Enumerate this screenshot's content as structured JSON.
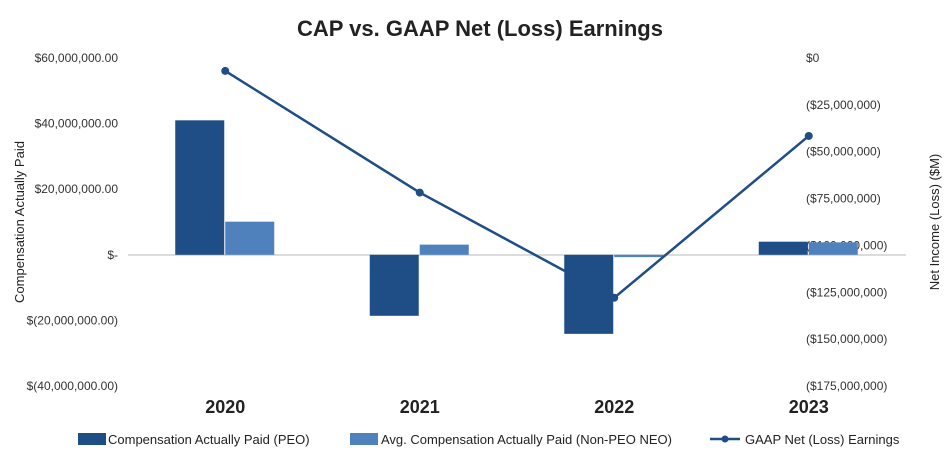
{
  "chart_data": {
    "type": "bar+line",
    "title": "CAP vs. GAAP Net (Loss) Earnings",
    "categories": [
      "2020",
      "2021",
      "2022",
      "2023"
    ],
    "ylabel": "Compensation Actually Paid",
    "y2label": "Net Income (Loss) ($M)",
    "ylim": [
      -40000000,
      60000000
    ],
    "y2lim": [
      -175000000,
      0
    ],
    "yticks": [
      "$(40,000,000.00)",
      "$(20,000,000.00)",
      "$-",
      "$20,000,000.00",
      "$40,000,000.00",
      "$60,000,000.00"
    ],
    "ytick_values": [
      -40000000,
      -20000000,
      0,
      20000000,
      40000000,
      60000000
    ],
    "y2ticks": [
      "($175,000,000)",
      "($150,000,000)",
      "($125,000,000)",
      "($100,000,000)",
      "($75,000,000)",
      "($50,000,000)",
      "($25,000,000)",
      "$0"
    ],
    "y2tick_values": [
      -175000000,
      -150000000,
      -125000000,
      -100000000,
      -75000000,
      -50000000,
      -25000000,
      0
    ],
    "series": [
      {
        "name": "Compensation Actually Paid (PEO)",
        "type": "bar",
        "axis": "left",
        "color": "#1f4e87",
        "values": [
          41000000,
          -18600000,
          -24100000,
          4000000
        ]
      },
      {
        "name": "Avg. Compensation Actually Paid (Non-PEO NEO)",
        "type": "bar",
        "axis": "left",
        "color": "#4f81bd",
        "values": [
          10100000,
          3100000,
          -700000,
          3800000
        ]
      },
      {
        "name": "GAAP Net (Loss) Earnings",
        "type": "line",
        "axis": "right",
        "color": "#1f4e87",
        "values": [
          -6900000,
          -71800000,
          -127900000,
          -41600000
        ]
      }
    ],
    "legend_position": "bottom",
    "grid": false
  }
}
